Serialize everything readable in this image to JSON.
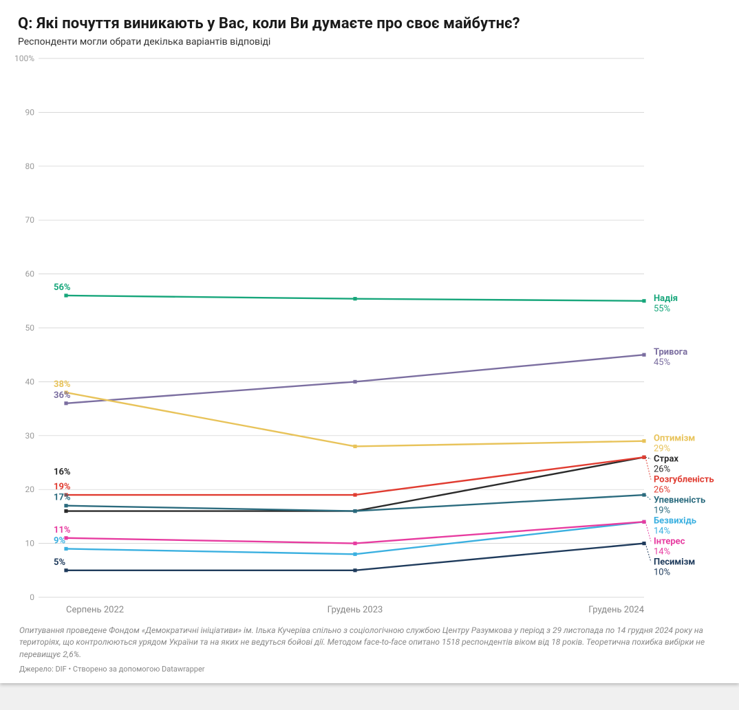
{
  "header": {
    "title": "Q: Які почуття виникають у Вас, коли Ви думаєте про своє майбутнє?",
    "subtitle": "Респонденти могли обрати декілька варіантів відповіді"
  },
  "chart": {
    "type": "line",
    "x_categories": [
      "Серпень 2022",
      "Грудень 2023",
      "Грудень 2024"
    ],
    "ylim": [
      0,
      100
    ],
    "yticks": [
      0,
      10,
      20,
      30,
      40,
      50,
      60,
      70,
      80,
      90,
      100
    ],
    "ytick_labels": [
      "0",
      "10",
      "20",
      "30",
      "40",
      "50",
      "60",
      "70",
      "80",
      "90",
      "100%"
    ],
    "grid_color": "#cccccc",
    "background_color": "#ffffff",
    "line_width": 2.4,
    "marker_size": 4.2,
    "axis_fontsize": 12,
    "x_label_fontsize": 13,
    "end_label_fontsize": 13,
    "series": [
      {
        "name": "Надія",
        "color": "#17a67b",
        "values": [
          56,
          55.4,
          55
        ],
        "start_label": "56%",
        "end_value_label": "55%"
      },
      {
        "name": "Тривога",
        "color": "#7b6ea0",
        "values": [
          36,
          40,
          45
        ],
        "start_label": "36%",
        "end_value_label": "45%"
      },
      {
        "name": "Оптимізм",
        "color": "#e8c35a",
        "values": [
          38,
          28,
          29
        ],
        "start_label": "38%",
        "end_value_label": "29%"
      },
      {
        "name": "Страх",
        "color": "#2b2b2b",
        "values": [
          16,
          16,
          26
        ],
        "start_label": "16%",
        "end_value_label": "26%"
      },
      {
        "name": "Розгубленість",
        "color": "#e03c31",
        "values": [
          19,
          19,
          26
        ],
        "start_label": "19%",
        "end_value_label": "26%"
      },
      {
        "name": "Упевненість",
        "color": "#2b6b7e",
        "values": [
          17,
          16,
          19
        ],
        "start_label": "17%",
        "end_value_label": "19%"
      },
      {
        "name": "Безвихідь",
        "color": "#3bb0e0",
        "values": [
          9,
          8,
          14
        ],
        "start_label": "9%",
        "end_value_label": "14%"
      },
      {
        "name": "Інтерес",
        "color": "#e73ca0",
        "values": [
          11,
          10,
          14
        ],
        "start_label": "11%",
        "end_value_label": "14%"
      },
      {
        "name": "Песимізм",
        "color": "#1f3b5c",
        "values": [
          5,
          5,
          10
        ],
        "start_label": "5%",
        "end_value_label": "10%"
      }
    ],
    "start_label_order": [
      "Надія",
      "Оптимізм",
      "Тривога",
      "Розгубленість",
      "Упевненість",
      "Страх",
      "Інтерес",
      "Безвихідь",
      "Песимізм"
    ],
    "end_label_order": [
      "Надія",
      "Тривога",
      "Оптимізм",
      "Страх",
      "Розгубленість",
      "Упевненість",
      "Безвихідь",
      "Інтерес",
      "Песимізм"
    ]
  },
  "footer": {
    "note": "Опитування проведене Фондом «Демократичні ініціативи» ім. Ілька Кучеріва спільно з соціологічною службою Центру Разумкова у період з 29 листопада по 14 грудня 2024 року на територіях, що контролюються урядом України та на яких не ведуться бойові дії. Методом face-to-face опитано 1518 респондентів віком від 18 років. Теоретична похибка вибірки не перевищує 2,6%.",
    "source": "Джерело: DIF • Створено за допомогою Datawrapper"
  }
}
